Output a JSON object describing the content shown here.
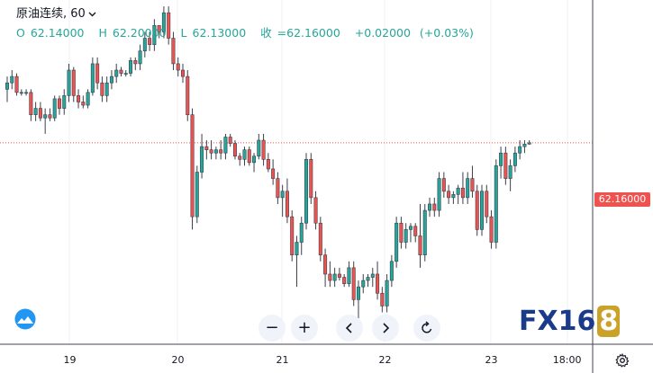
{
  "header": {
    "symbol": "原油连续",
    "interval": "60",
    "open_label": "O",
    "open": "62.14000",
    "high_label": "H",
    "high": "62.20000",
    "low_label": "L",
    "low": "62.13000",
    "close_label": "收",
    "close": "=62.16000",
    "change": "+0.02000",
    "change_pct": "(+0.03%)"
  },
  "price_tag": "62.16000",
  "time_axis": [
    "19",
    "20",
    "21",
    "22",
    "23",
    "18:00"
  ],
  "controls": {
    "zoom_out": "−",
    "zoom_in": "+"
  },
  "brand": {
    "text": "FX16",
    "eight": "8"
  },
  "colors": {
    "up": "#26a69a",
    "down": "#ef5350",
    "grid": "#eef0f3",
    "last_line": "#ef5350",
    "brand": "#1a3a8a",
    "brand_accent": "#c9a227"
  },
  "icons": [
    "cloud-logo-icon",
    "chevron-left-icon",
    "chevron-right-icon",
    "reset-icon",
    "gear-icon"
  ],
  "chart_data": {
    "type": "candlestick",
    "interval": "60",
    "x_labels": [
      "19",
      "20",
      "21",
      "22",
      "23",
      "18:00"
    ],
    "ylim": [
      59.0,
      64.4
    ],
    "last_price": 62.16,
    "grid": true,
    "candles": [
      [
        63.0,
        63.2,
        62.8,
        63.1
      ],
      [
        63.1,
        63.3,
        63.0,
        63.2
      ],
      [
        63.2,
        63.25,
        62.9,
        62.95
      ],
      [
        62.95,
        63.0,
        62.9,
        62.95
      ],
      [
        62.95,
        63.0,
        62.9,
        62.95
      ],
      [
        62.95,
        63.0,
        62.5,
        62.6
      ],
      [
        62.6,
        62.8,
        62.5,
        62.7
      ],
      [
        62.7,
        62.8,
        62.5,
        62.55
      ],
      [
        62.55,
        62.7,
        62.3,
        62.6
      ],
      [
        62.6,
        62.7,
        62.5,
        62.55
      ],
      [
        62.55,
        62.9,
        62.5,
        62.85
      ],
      [
        62.85,
        62.9,
        62.6,
        62.7
      ],
      [
        62.7,
        63.0,
        62.6,
        62.9
      ],
      [
        62.9,
        63.4,
        62.8,
        63.3
      ],
      [
        63.3,
        63.35,
        62.8,
        62.9
      ],
      [
        62.9,
        63.0,
        62.7,
        62.8
      ],
      [
        62.8,
        62.9,
        62.7,
        62.75
      ],
      [
        62.75,
        63.0,
        62.7,
        62.95
      ],
      [
        62.95,
        63.5,
        62.9,
        63.4
      ],
      [
        63.4,
        63.5,
        63.0,
        63.1
      ],
      [
        63.1,
        63.2,
        62.8,
        62.9
      ],
      [
        62.9,
        63.2,
        62.8,
        63.1
      ],
      [
        63.1,
        63.3,
        63.0,
        63.2
      ],
      [
        63.2,
        63.4,
        63.1,
        63.3
      ],
      [
        63.3,
        63.35,
        63.2,
        63.25
      ],
      [
        63.25,
        63.3,
        63.2,
        63.25
      ],
      [
        63.25,
        63.5,
        63.2,
        63.45
      ],
      [
        63.45,
        63.5,
        63.3,
        63.4
      ],
      [
        63.4,
        63.7,
        63.3,
        63.6
      ],
      [
        63.6,
        63.9,
        63.5,
        63.8
      ],
      [
        63.8,
        63.9,
        63.6,
        63.7
      ],
      [
        63.7,
        64.1,
        63.6,
        64.0
      ],
      [
        64.0,
        64.0,
        63.8,
        63.9
      ],
      [
        63.9,
        64.3,
        63.8,
        64.2
      ],
      [
        64.2,
        64.3,
        63.7,
        63.8
      ],
      [
        63.8,
        63.9,
        63.3,
        63.4
      ],
      [
        63.4,
        63.5,
        63.2,
        63.3
      ],
      [
        63.3,
        63.4,
        63.1,
        63.2
      ],
      [
        63.2,
        63.3,
        62.5,
        62.6
      ],
      [
        62.6,
        62.7,
        60.8,
        61.0
      ],
      [
        61.0,
        61.8,
        60.9,
        61.7
      ],
      [
        61.7,
        62.3,
        61.6,
        62.1
      ],
      [
        62.1,
        62.2,
        61.9,
        62.05
      ],
      [
        62.05,
        62.2,
        61.9,
        62.0
      ],
      [
        62.0,
        62.1,
        61.9,
        62.05
      ],
      [
        62.05,
        62.2,
        61.9,
        62.0
      ],
      [
        62.0,
        62.3,
        61.9,
        62.25
      ],
      [
        62.25,
        62.3,
        62.1,
        62.15
      ],
      [
        62.15,
        62.2,
        61.9,
        61.95
      ],
      [
        61.95,
        62.0,
        61.8,
        61.9
      ],
      [
        61.9,
        62.1,
        61.8,
        62.05
      ],
      [
        62.05,
        62.1,
        61.8,
        61.85
      ],
      [
        61.85,
        62.0,
        61.7,
        61.95
      ],
      [
        61.95,
        62.3,
        61.9,
        62.2
      ],
      [
        62.2,
        62.3,
        61.8,
        61.9
      ],
      [
        61.9,
        62.0,
        61.7,
        61.75
      ],
      [
        61.75,
        61.9,
        61.5,
        61.6
      ],
      [
        61.6,
        61.7,
        61.2,
        61.3
      ],
      [
        61.3,
        61.5,
        61.0,
        61.4
      ],
      [
        61.4,
        61.6,
        60.9,
        61.0
      ],
      [
        61.0,
        61.1,
        60.3,
        60.4
      ],
      [
        60.4,
        60.7,
        59.9,
        60.6
      ],
      [
        60.6,
        61.0,
        60.4,
        60.9
      ],
      [
        60.9,
        62.0,
        60.8,
        61.9
      ],
      [
        61.9,
        62.0,
        61.2,
        61.3
      ],
      [
        61.3,
        61.4,
        60.8,
        60.9
      ],
      [
        60.9,
        61.0,
        60.3,
        60.4
      ],
      [
        60.4,
        60.5,
        59.9,
        60.1
      ],
      [
        60.1,
        60.3,
        59.9,
        60.0
      ],
      [
        60.0,
        60.2,
        59.9,
        60.1
      ],
      [
        60.1,
        60.2,
        60.0,
        60.05
      ],
      [
        60.05,
        60.1,
        59.9,
        59.95
      ],
      [
        59.95,
        60.3,
        59.9,
        60.2
      ],
      [
        60.2,
        60.3,
        59.6,
        59.7
      ],
      [
        59.7,
        60.0,
        59.4,
        59.9
      ],
      [
        59.9,
        60.1,
        59.8,
        60.0
      ],
      [
        60.0,
        60.1,
        59.9,
        60.05
      ],
      [
        60.05,
        60.2,
        59.9,
        60.1
      ],
      [
        60.1,
        60.3,
        59.7,
        59.8
      ],
      [
        59.8,
        59.9,
        59.5,
        59.6
      ],
      [
        59.6,
        60.1,
        59.5,
        60.0
      ],
      [
        60.0,
        60.4,
        59.9,
        60.3
      ],
      [
        60.3,
        61.0,
        60.2,
        60.9
      ],
      [
        60.9,
        61.0,
        60.5,
        60.6
      ],
      [
        60.6,
        60.9,
        60.5,
        60.8
      ],
      [
        60.8,
        60.9,
        60.6,
        60.85
      ],
      [
        60.85,
        60.9,
        60.6,
        60.7
      ],
      [
        60.7,
        61.2,
        60.2,
        60.4
      ],
      [
        60.4,
        61.2,
        60.3,
        61.1
      ],
      [
        61.1,
        61.3,
        61.0,
        61.2
      ],
      [
        61.2,
        61.3,
        61.0,
        61.1
      ],
      [
        61.1,
        61.7,
        61.0,
        61.6
      ],
      [
        61.6,
        61.7,
        61.3,
        61.4
      ],
      [
        61.4,
        61.5,
        61.2,
        61.3
      ],
      [
        61.3,
        61.4,
        61.2,
        61.35
      ],
      [
        61.35,
        61.5,
        61.2,
        61.45
      ],
      [
        61.45,
        61.7,
        61.2,
        61.3
      ],
      [
        61.3,
        61.7,
        61.2,
        61.6
      ],
      [
        61.6,
        61.8,
        61.3,
        61.4
      ],
      [
        61.4,
        61.5,
        60.7,
        60.8
      ],
      [
        60.8,
        61.5,
        60.7,
        61.4
      ],
      [
        61.4,
        61.5,
        60.9,
        61.0
      ],
      [
        61.0,
        61.1,
        60.5,
        60.6
      ],
      [
        60.6,
        61.9,
        60.5,
        61.8
      ],
      [
        61.8,
        62.1,
        61.6,
        62.0
      ],
      [
        62.0,
        62.1,
        61.5,
        61.6
      ],
      [
        61.6,
        61.9,
        61.4,
        61.8
      ],
      [
        61.8,
        62.1,
        61.7,
        62.0
      ],
      [
        62.0,
        62.2,
        61.9,
        62.1
      ],
      [
        62.1,
        62.2,
        62.0,
        62.14
      ],
      [
        62.14,
        62.2,
        62.13,
        62.16
      ]
    ]
  }
}
